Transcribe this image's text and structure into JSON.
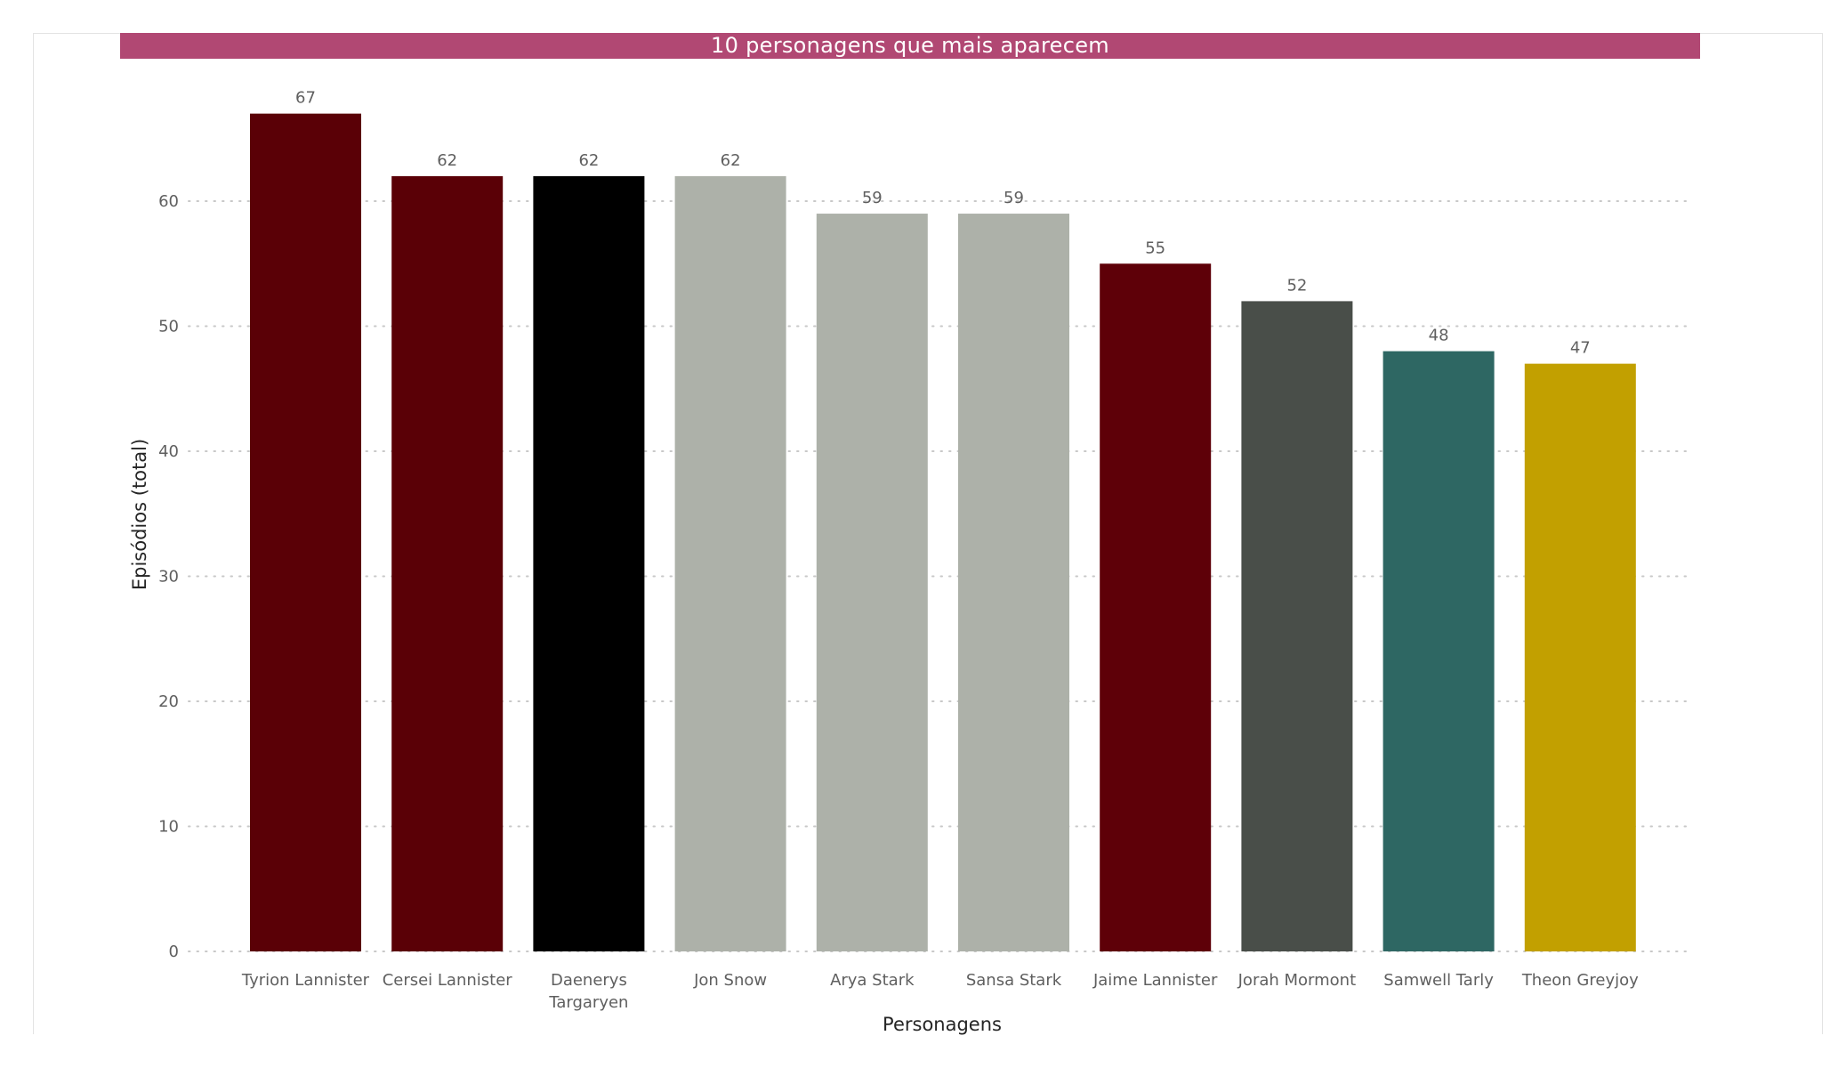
{
  "colors": {
    "title_background": "#b14873",
    "title_text": "#ffffff",
    "gridline": "#c8c8c8",
    "tick_label": "#5f5f5f",
    "axis_title": "#252525"
  },
  "chart_data": {
    "type": "bar",
    "title": "10 personagens que mais aparecem",
    "xlabel": "Personagens",
    "ylabel": "Episódios (total)",
    "ylim": [
      0,
      70
    ],
    "yticks": [
      0,
      10,
      20,
      30,
      40,
      50,
      60
    ],
    "grid": "horizontal dotted",
    "legend": "none",
    "data_labels": true,
    "categories": [
      "Tyrion Lannister",
      "Cersei Lannister",
      "Daenerys Targaryen",
      "Jon Snow",
      "Arya Stark",
      "Sansa Stark",
      "Jaime Lannister",
      "Jorah Mormont",
      "Samwell Tarly",
      "Theon Greyjoy"
    ],
    "values": [
      67,
      62,
      62,
      62,
      59,
      59,
      55,
      52,
      48,
      47
    ],
    "bar_colors": [
      "#5a0006",
      "#5a0006",
      "#000000",
      "#adb1a9",
      "#adb1a9",
      "#adb1a9",
      "#5e0008",
      "#494e49",
      "#2e6763",
      "#c2a000"
    ]
  }
}
